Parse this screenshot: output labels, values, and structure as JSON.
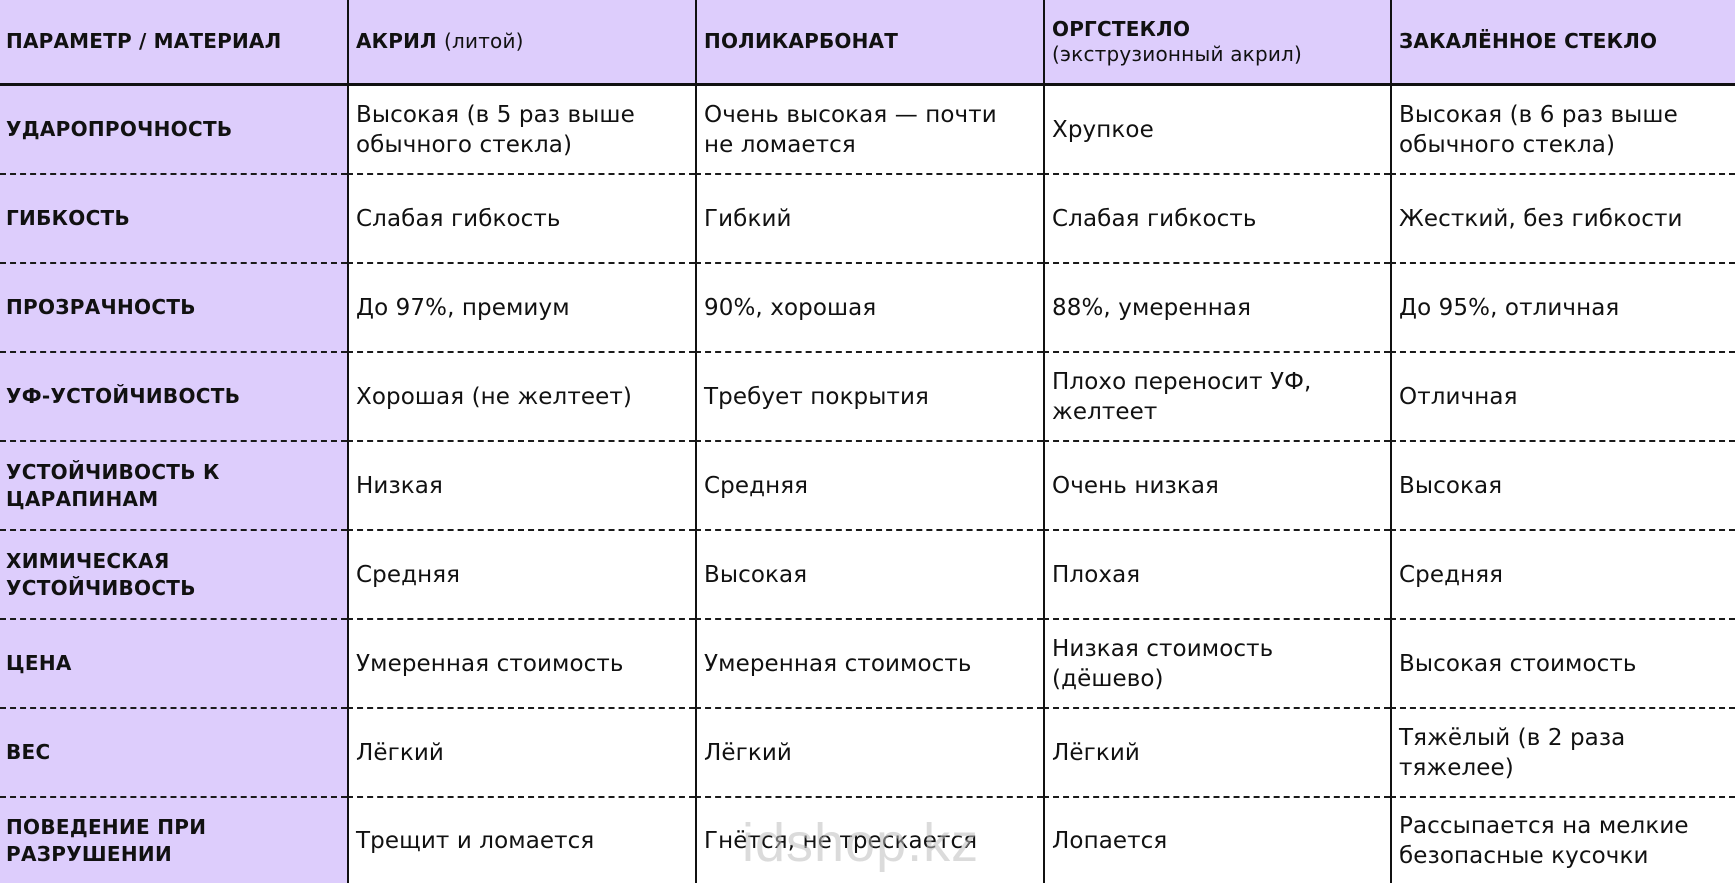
{
  "table": {
    "header": {
      "param_col": "ПАРАМЕТР / МАТЕРИАЛ",
      "columns": [
        {
          "title": "АКРИЛ",
          "subtitle": "(литой)",
          "subtitle_inline": true
        },
        {
          "title": "ПОЛИКАРБОНАТ",
          "subtitle": "",
          "subtitle_inline": true
        },
        {
          "title": "ОРГСТЕКЛО",
          "subtitle": "(экструзионный акрил)",
          "subtitle_inline": false
        },
        {
          "title": "ЗАКАЛЁННОЕ СТЕКЛО",
          "subtitle": "",
          "subtitle_inline": true
        }
      ]
    },
    "rows": [
      {
        "label": "УДАРОПРОЧНОСТЬ",
        "values": [
          "Высокая (в 5 раз выше обычного стекла)",
          "Очень высокая — почти не ломается",
          "Хрупкое",
          "Высокая (в 6 раз выше обычного стекла)"
        ]
      },
      {
        "label": "ГИБКОСТЬ",
        "values": [
          "Слабая гибкость",
          "Гибкий",
          "Слабая гибкость",
          "Жесткий, без гибкости"
        ]
      },
      {
        "label": "ПРОЗРАЧНОСТЬ",
        "values": [
          "До 97%, премиум",
          "90%, хорошая",
          "88%, умеренная",
          "До 95%, отличная"
        ]
      },
      {
        "label": "УФ-УСТОЙЧИВОСТЬ",
        "values": [
          "Хорошая (не желтеет)",
          "Требует покрытия",
          "Плохо переносит УФ, желтеет",
          "Отличная"
        ]
      },
      {
        "label": "УСТОЙЧИВОСТЬ К ЦАРАПИНАМ",
        "values": [
          "Низкая",
          "Средняя",
          "Очень низкая",
          "Высокая"
        ]
      },
      {
        "label": "ХИМИЧЕСКАЯ УСТОЙЧИВОСТЬ",
        "values": [
          "Средняя",
          "Высокая",
          "Плохая",
          "Средняя"
        ]
      },
      {
        "label": "ЦЕНА",
        "values": [
          "Умеренная стоимость",
          "Умеренная стоимость",
          "Низкая стоимость (дёшево)",
          "Высокая стоимость"
        ]
      },
      {
        "label": "ВЕС",
        "values": [
          "Лёгкий",
          "Лёгкий",
          "Лёгкий",
          "Тяжёлый (в 2 раза тяжелее)"
        ]
      },
      {
        "label": "ПОВЕДЕНИЕ ПРИ РАЗРУШЕНИИ",
        "values": [
          "Трещит и ломается",
          "Гнётся, не трескается",
          "Лопается",
          "Рассыпается на мелкие безопасные кусочки"
        ]
      }
    ]
  },
  "watermark": "idshop.kz",
  "colors": {
    "header_bg": "#ddcdfc",
    "label_col_bg": "#ddcdfc",
    "border": "#111111"
  }
}
